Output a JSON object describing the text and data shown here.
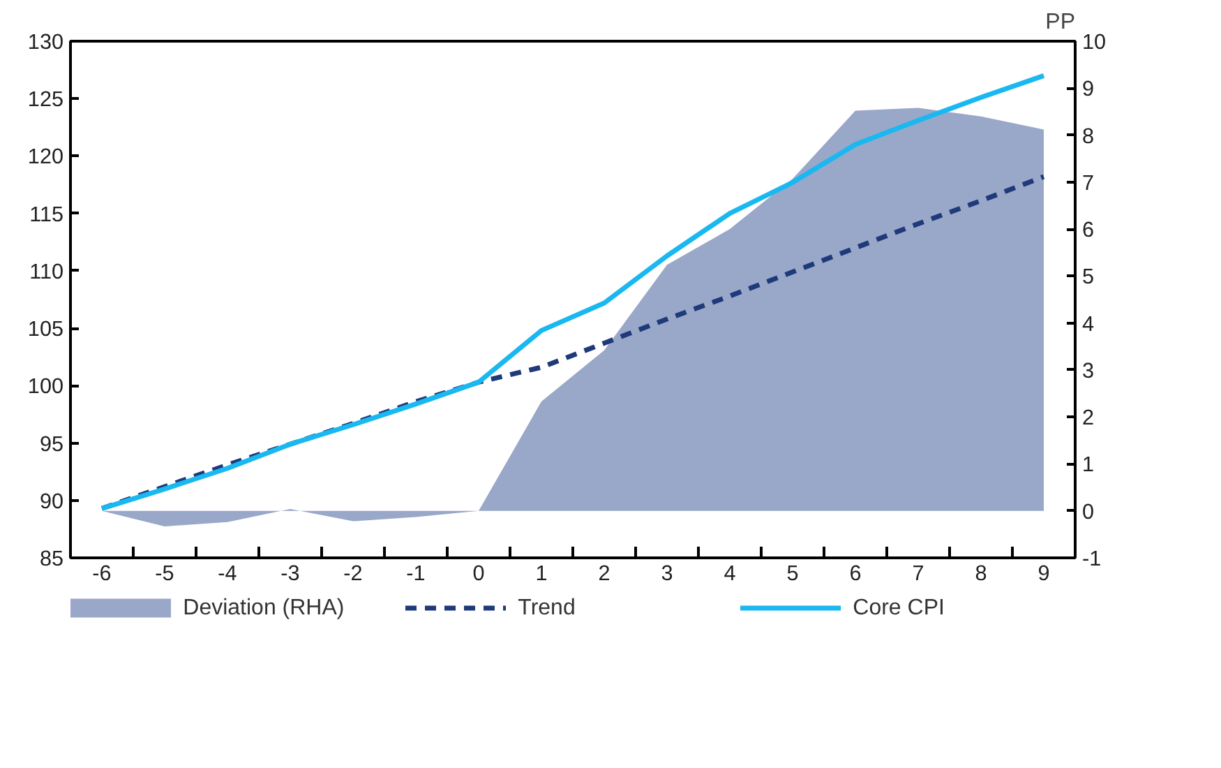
{
  "chart_data": {
    "type": "line",
    "y2label": "PP",
    "x": [
      -6,
      -5,
      -4,
      -3,
      -2,
      -1,
      0,
      1,
      2,
      3,
      4,
      5,
      6,
      7,
      8,
      9
    ],
    "series": [
      {
        "name": "Deviation (RHA)",
        "type": "area",
        "axis": "y2",
        "color": "#99a8c8",
        "values": [
          0,
          -0.33,
          -0.24,
          0.04,
          -0.22,
          -0.13,
          0,
          2.33,
          3.42,
          5.24,
          6.0,
          7.07,
          8.52,
          8.58,
          8.4,
          8.12
        ]
      },
      {
        "name": "Trend",
        "color": "#1f3a7a",
        "line_style": "dashed",
        "values": [
          89.3,
          91.2,
          93.1,
          94.9,
          96.7,
          98.6,
          100.3,
          101.6,
          103.7,
          105.8,
          107.8,
          109.9,
          112.0,
          114.1,
          116.1,
          118.2
        ]
      },
      {
        "name": "Core CPI",
        "color": "#19b8f0",
        "line_style": "solid",
        "values": [
          89.3,
          91.0,
          92.8,
          94.9,
          96.6,
          98.4,
          100.3,
          104.8,
          107.2,
          111.3,
          115.0,
          117.7,
          121.0,
          123.1,
          125.1,
          127.0
        ]
      }
    ],
    "xlim": [
      -6.5,
      9.5
    ],
    "xticks": [
      -6,
      -5,
      -4,
      -3,
      -2,
      -1,
      0,
      1,
      2,
      3,
      4,
      5,
      6,
      7,
      8,
      9
    ],
    "ylim": [
      85,
      130
    ],
    "yticks": [
      85,
      90,
      95,
      100,
      105,
      110,
      115,
      120,
      125,
      130
    ],
    "y2lim": [
      -1,
      10
    ],
    "y2ticks": [
      -1,
      0,
      1,
      2,
      3,
      4,
      5,
      6,
      7,
      8,
      9,
      10
    ],
    "grid": false,
    "legend": "bottom"
  }
}
